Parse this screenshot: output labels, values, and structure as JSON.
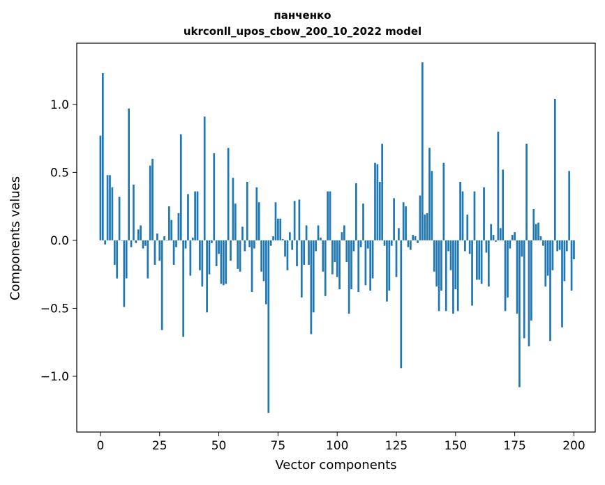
{
  "chart_data": {
    "type": "bar",
    "title": "панченко",
    "subtitle": "ukrconll_upos_cbow_200_10_2022 model",
    "xlabel": "Vector components",
    "ylabel": "Components values",
    "xlim": [
      -10,
      209
    ],
    "ylim": [
      -1.41,
      1.45
    ],
    "xticks": [
      0,
      25,
      50,
      75,
      100,
      125,
      150,
      175,
      200
    ],
    "yticks": [
      -1.0,
      -0.5,
      0.0,
      0.5,
      1.0
    ],
    "ytick_labels": [
      "−1.0",
      "−0.5",
      "0.0",
      "0.5",
      "1.0"
    ],
    "xtick_labels": [
      "0",
      "25",
      "50",
      "75",
      "100",
      "125",
      "150",
      "175",
      "200"
    ],
    "bar_color": "#1f77b4",
    "grid": false,
    "values": [
      0.77,
      1.23,
      -0.03,
      0.48,
      0.48,
      0.39,
      -0.18,
      -0.28,
      0.32,
      0.0,
      -0.49,
      -0.28,
      0.97,
      -0.05,
      0.41,
      -0.02,
      0.08,
      0.11,
      -0.06,
      -0.04,
      -0.28,
      0.55,
      0.6,
      -0.18,
      0.05,
      -0.15,
      -0.66,
      0.03,
      0.0,
      0.25,
      0.15,
      -0.18,
      -0.05,
      0.2,
      0.78,
      -0.71,
      -0.06,
      0.34,
      -0.26,
      0.02,
      0.36,
      0.36,
      -0.22,
      -0.34,
      0.91,
      -0.53,
      -0.25,
      -0.02,
      0.64,
      -0.19,
      -0.1,
      -0.32,
      -0.33,
      -0.32,
      0.68,
      -0.15,
      0.46,
      0.27,
      -0.21,
      -0.23,
      0.1,
      -0.08,
      0.43,
      -0.05,
      -0.38,
      -0.06,
      0.39,
      0.28,
      -0.23,
      -0.3,
      -0.47,
      -1.27,
      -0.04,
      0.03,
      0.28,
      0.16,
      0.16,
      0.01,
      -0.12,
      -0.22,
      0.06,
      -0.07,
      0.29,
      -0.19,
      0.3,
      -0.42,
      -0.18,
      0.11,
      -0.18,
      -0.69,
      -0.53,
      -0.08,
      0.11,
      0.02,
      -0.23,
      -0.41,
      0.36,
      0.36,
      -0.25,
      -0.16,
      -0.27,
      -0.36,
      0.06,
      0.11,
      -0.16,
      -0.54,
      -0.36,
      -0.08,
      0.42,
      -0.38,
      -0.05,
      0.27,
      -0.33,
      -0.06,
      -0.37,
      -0.28,
      0.57,
      0.56,
      0.43,
      0.71,
      -0.04,
      -0.45,
      -0.37,
      -0.04,
      0.31,
      -0.27,
      0.09,
      -0.94,
      0.28,
      0.25,
      -0.05,
      -0.07,
      0.04,
      0.03,
      -0.02,
      0.33,
      1.31,
      0.19,
      0.2,
      0.68,
      0.51,
      -0.23,
      -0.34,
      -0.52,
      -0.37,
      0.57,
      -0.52,
      -0.08,
      -0.22,
      -0.54,
      -0.36,
      -0.52,
      0.43,
      0.36,
      -0.08,
      0.19,
      -0.1,
      -0.48,
      0.36,
      -0.29,
      -0.29,
      -0.32,
      0.39,
      -0.09,
      -0.34,
      0.12,
      0.04,
      -0.01,
      0.8,
      0.09,
      0.52,
      -0.52,
      -0.42,
      -0.06,
      0.04,
      0.06,
      -0.54,
      -1.08,
      -0.12,
      -0.72,
      0.71,
      -0.78,
      -0.59,
      0.23,
      0.12,
      0.13,
      0.03,
      -0.04,
      -0.34,
      -0.26,
      -0.74,
      -0.22,
      1.04,
      -0.08,
      -0.07,
      -0.64,
      -0.3,
      -0.08,
      0.51,
      -0.37,
      -0.14
    ]
  }
}
